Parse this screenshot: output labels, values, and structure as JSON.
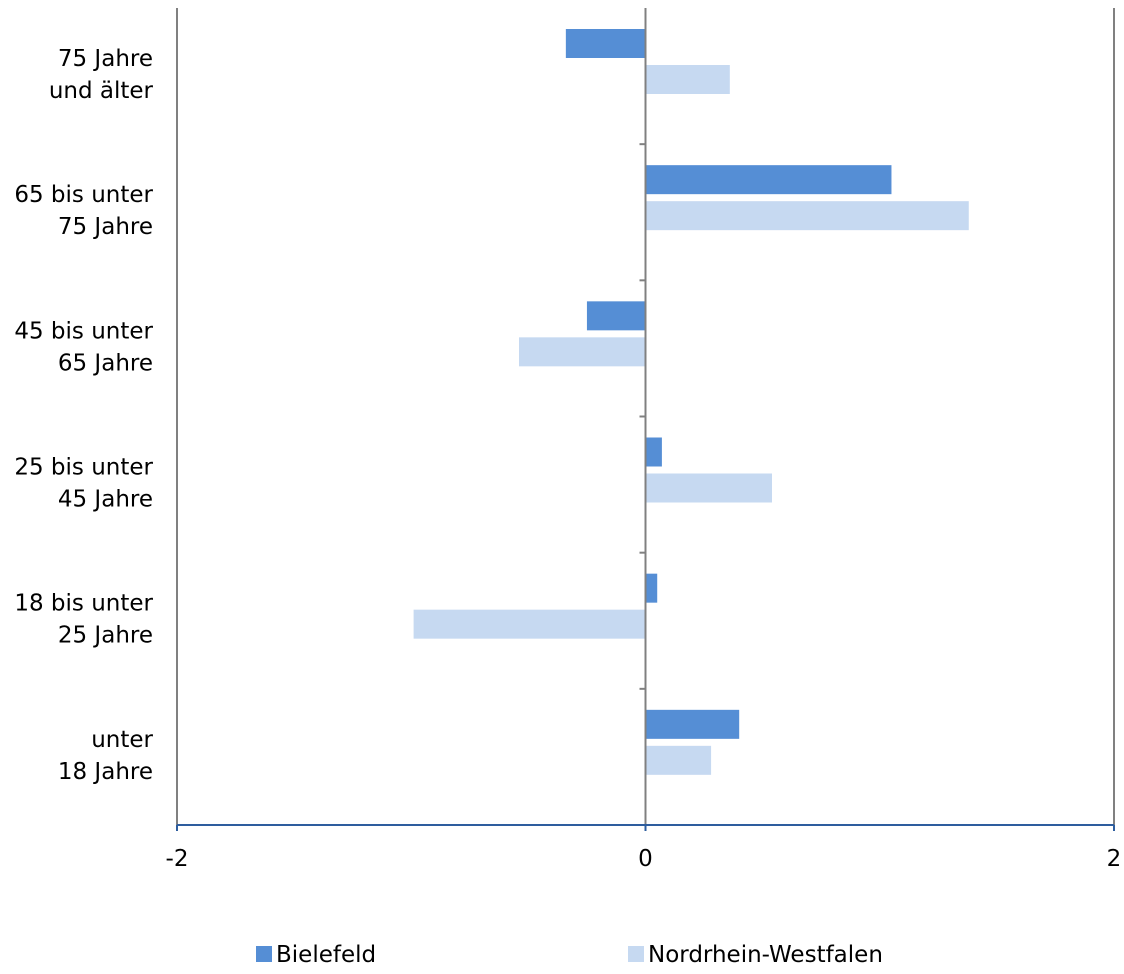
{
  "chart_data": {
    "type": "bar",
    "orientation": "horizontal",
    "categories": [
      [
        "75 Jahre",
        "und älter"
      ],
      [
        "65 bis unter",
        "75 Jahre"
      ],
      [
        "45 bis unter",
        "65 Jahre"
      ],
      [
        "25 bis unter",
        "45 Jahre"
      ],
      [
        "18 bis unter",
        "25 Jahre"
      ],
      [
        "unter",
        "18 Jahre"
      ]
    ],
    "series": [
      {
        "name": "Bielefeld",
        "color": "#558ED5",
        "values": [
          -0.34,
          1.05,
          -0.25,
          0.07,
          0.05,
          0.4
        ]
      },
      {
        "name": "Nordrhein-Westfalen",
        "color": "#C6D9F1",
        "values": [
          0.36,
          1.38,
          -0.54,
          0.54,
          -0.99,
          0.28
        ]
      }
    ],
    "xlim": [
      -2,
      2
    ],
    "xticks": [
      "-2",
      "0",
      "2"
    ],
    "grid": false,
    "legend_position": "bottom",
    "title": "",
    "xlabel": "",
    "ylabel": ""
  }
}
